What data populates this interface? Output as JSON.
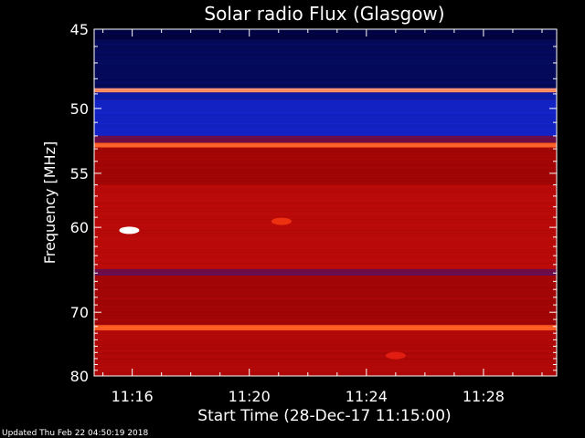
{
  "chart_data": {
    "type": "heatmap",
    "title": "Solar radio Flux (Glasgow)",
    "xlabel": "Start Time (28-Dec-17 11:15:00)",
    "ylabel": "Frequency [MHz]",
    "x_ticks": [
      "11:16",
      "11:20",
      "11:24",
      "11:28"
    ],
    "x_tick_minutes": [
      1,
      5,
      9,
      13
    ],
    "xlim_minutes": [
      -0.3,
      15.5
    ],
    "y_ticks": [
      45,
      50,
      55,
      60,
      70,
      80
    ],
    "ylim": [
      45,
      80
    ],
    "y_scale": "reciprocal",
    "colormap": [
      "#000033",
      "#0a1aa0",
      "#1f2df0",
      "#8a0000",
      "#d81010",
      "#ff5010",
      "#ffffff"
    ],
    "bands": [
      {
        "from": 45,
        "to": 45.6,
        "level": 0.02
      },
      {
        "from": 45.6,
        "to": 48.6,
        "level": 0.06
      },
      {
        "from": 48.6,
        "to": 48.9,
        "level": 0.9
      },
      {
        "from": 48.9,
        "to": 49.4,
        "level": 0.18
      },
      {
        "from": 49.4,
        "to": 52.0,
        "level": 0.24
      },
      {
        "from": 52.0,
        "to": 52.5,
        "level": 0.45
      },
      {
        "from": 52.5,
        "to": 52.9,
        "level": 0.85
      },
      {
        "from": 52.9,
        "to": 56.0,
        "level": 0.55
      },
      {
        "from": 56.0,
        "to": 64.5,
        "level": 0.6
      },
      {
        "from": 64.5,
        "to": 65.3,
        "level": 0.45
      },
      {
        "from": 65.3,
        "to": 71.8,
        "level": 0.55
      },
      {
        "from": 71.8,
        "to": 72.6,
        "level": 0.85
      },
      {
        "from": 72.6,
        "to": 80,
        "level": 0.58
      }
    ],
    "bursts": [
      {
        "minute": 0.9,
        "mhz": 60.3,
        "level": 1.0
      },
      {
        "minute": 6.1,
        "mhz": 59.4,
        "level": 0.75
      },
      {
        "minute": 10.0,
        "mhz": 76.5,
        "level": 0.7
      }
    ]
  },
  "footer": {
    "updated": "Updated Thu Feb 22 04:50:19 2018"
  }
}
